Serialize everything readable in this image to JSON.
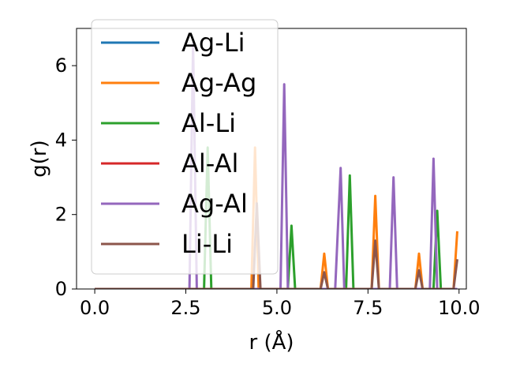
{
  "chart_data": {
    "type": "line",
    "xlabel": "r (Å)",
    "ylabel": "g(r)",
    "xlim": [
      -0.5,
      10.2
    ],
    "ylim": [
      0,
      7
    ],
    "xticks": [
      0.0,
      2.5,
      5.0,
      7.5,
      10.0
    ],
    "xtick_labels": [
      "0.0",
      "2.5",
      "5.0",
      "7.5",
      "10.0"
    ],
    "yticks": [
      0,
      2,
      4,
      6
    ],
    "ytick_labels": [
      "0",
      "2",
      "4",
      "6"
    ],
    "grid": false,
    "legend_position": "top-left",
    "series": [
      {
        "name": "Ag-Li",
        "color": "#1f77b4",
        "x": [
          0.0,
          9.95
        ],
        "y": [
          0,
          0
        ]
      },
      {
        "name": "Ag-Ag",
        "color": "#ff7f0e",
        "x": [
          0.0,
          4.3,
          4.4,
          4.5,
          6.2,
          6.3,
          6.4,
          7.6,
          7.7,
          7.8,
          8.8,
          8.9,
          9.0,
          9.85,
          9.95
        ],
        "y": [
          0,
          0,
          3.8,
          0,
          0,
          0.95,
          0,
          0,
          2.5,
          0,
          0,
          0.95,
          0,
          0,
          1.55
        ]
      },
      {
        "name": "Al-Li",
        "color": "#2ca02c",
        "x": [
          0.0,
          3.0,
          3.1,
          3.2,
          5.3,
          5.4,
          5.5,
          6.9,
          7.0,
          7.1,
          9.3,
          9.4,
          9.5,
          9.95
        ],
        "y": [
          0,
          0,
          3.8,
          0,
          0,
          1.7,
          0,
          0,
          3.05,
          0,
          0,
          2.1,
          0,
          0
        ]
      },
      {
        "name": "Al-Al",
        "color": "#d62728",
        "x": [
          0.0,
          9.95
        ],
        "y": [
          0,
          0
        ]
      },
      {
        "name": "Ag-Al",
        "color": "#9467bd",
        "x": [
          0.0,
          2.6,
          2.7,
          2.8,
          5.1,
          5.2,
          5.3,
          6.6,
          6.75,
          6.85,
          8.1,
          8.2,
          8.3,
          9.2,
          9.3,
          9.4,
          9.95
        ],
        "y": [
          0,
          0,
          6.6,
          0,
          0,
          5.5,
          0,
          0,
          3.25,
          0,
          0,
          3.0,
          0,
          0,
          3.5,
          0,
          0
        ]
      },
      {
        "name": "Li-Li",
        "color": "#8c564b",
        "x": [
          0.0,
          4.35,
          4.45,
          4.55,
          6.2,
          6.3,
          6.4,
          7.6,
          7.7,
          7.8,
          8.8,
          8.9,
          9.0,
          9.85,
          9.95
        ],
        "y": [
          0,
          0,
          2.3,
          0,
          0,
          0.45,
          0,
          0,
          1.3,
          0,
          0,
          0.5,
          0,
          0,
          0.8
        ]
      }
    ]
  }
}
